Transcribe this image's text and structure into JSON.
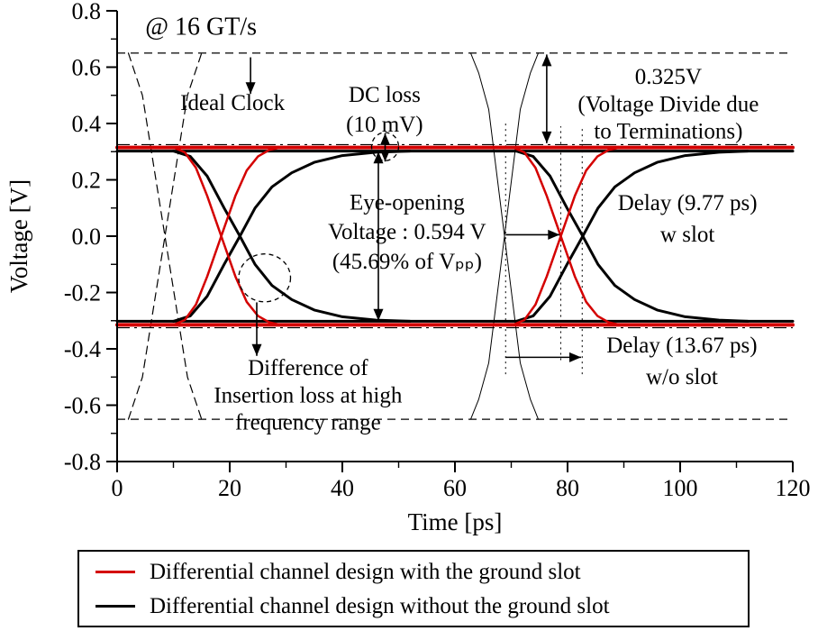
{
  "chart_data": {
    "type": "line",
    "xlabel": "Time [ps]",
    "ylabel": "Voltage [V]",
    "xlim": [
      0,
      120
    ],
    "ylim": [
      -0.8,
      0.8
    ],
    "x_ticks": [
      0,
      20,
      40,
      60,
      80,
      100,
      120
    ],
    "x_tick_labels": [
      "0",
      "20",
      "40",
      "60",
      "80",
      "100",
      "120"
    ],
    "x_minor_step": 10,
    "y_ticks": [
      0.8,
      0.6,
      0.4,
      0.2,
      0.0,
      -0.2,
      -0.4,
      -0.6,
      -0.8
    ],
    "y_tick_labels": [
      "0.8",
      "0.6",
      "0.4",
      "0.2",
      "0.0",
      "-0.2",
      "-0.4",
      "-0.6",
      "-0.8"
    ],
    "y_minor_step": 0.1,
    "colors": {
      "with_slot": "#d40000",
      "without_slot": "#000000"
    },
    "reference_lines": [
      {
        "v": 0.65,
        "style": "dashed",
        "meaning": "ideal clock high level"
      },
      {
        "v": -0.65,
        "style": "dashed",
        "meaning": "ideal clock low level"
      },
      {
        "v": 0.325,
        "style": "dashdot",
        "meaning": "termination divide level +0.325V"
      },
      {
        "v": -0.325,
        "style": "dashdot",
        "meaning": "termination divide level -0.325V"
      }
    ],
    "vlines": [
      {
        "t": 69.0,
        "from": -0.49,
        "to": 0.41
      },
      {
        "t": 78.8,
        "from": -0.44,
        "to": 0.39
      },
      {
        "t": 82.6,
        "from": -0.49,
        "to": 0.39
      }
    ],
    "series": [
      {
        "name": "ideal-clock-rise-1",
        "color": "#000000",
        "width": 1.2,
        "style": "dashed",
        "points": [
          [
            2,
            -0.65
          ],
          [
            4.5,
            -0.5
          ],
          [
            8.5,
            0
          ],
          [
            12.5,
            0.5
          ],
          [
            15,
            0.65
          ]
        ]
      },
      {
        "name": "ideal-clock-fall-1",
        "color": "#000000",
        "width": 1.2,
        "style": "dashed",
        "points": [
          [
            2,
            0.65
          ],
          [
            4.5,
            0.5
          ],
          [
            8.5,
            0
          ],
          [
            12.5,
            -0.5
          ],
          [
            15,
            -0.65
          ]
        ]
      },
      {
        "name": "ideal-clock-fall-2",
        "color": "#000000",
        "width": 1,
        "style": "solid",
        "points": [
          [
            62.8,
            0.65
          ],
          [
            64.2,
            0.58
          ],
          [
            66,
            0.45
          ],
          [
            68.8,
            0
          ],
          [
            71.6,
            -0.45
          ],
          [
            73.4,
            -0.58
          ],
          [
            74.8,
            -0.65
          ]
        ]
      },
      {
        "name": "ideal-clock-rise-2",
        "color": "#000000",
        "width": 1,
        "style": "solid",
        "points": [
          [
            62.8,
            -0.65
          ],
          [
            64.2,
            -0.58
          ],
          [
            66,
            -0.45
          ],
          [
            68.8,
            0
          ],
          [
            71.6,
            0.45
          ],
          [
            73.4,
            0.58
          ],
          [
            74.8,
            0.65
          ]
        ]
      },
      {
        "name": "black-rail-top",
        "color": "#000000",
        "width": 3,
        "style": "solid",
        "points": [
          [
            0,
            0.302
          ],
          [
            120,
            0.302
          ]
        ]
      },
      {
        "name": "black-rail-bottom",
        "color": "#000000",
        "width": 3,
        "style": "solid",
        "points": [
          [
            0,
            -0.302
          ],
          [
            120,
            -0.302
          ]
        ]
      },
      {
        "name": "red-rail-top",
        "color": "#d40000",
        "width": 4,
        "style": "solid",
        "points": [
          [
            0,
            0.315
          ],
          [
            120,
            0.315
          ]
        ]
      },
      {
        "name": "red-rail-bottom",
        "color": "#d40000",
        "width": 4,
        "style": "solid",
        "points": [
          [
            0,
            -0.315
          ],
          [
            120,
            -0.315
          ]
        ]
      },
      {
        "name": "black-rise-1",
        "color": "#000000",
        "width": 3,
        "style": "solid",
        "points": [
          [
            10,
            -0.302
          ],
          [
            13,
            -0.283
          ],
          [
            16,
            -0.213
          ],
          [
            19,
            -0.1
          ],
          [
            21.8,
            0
          ],
          [
            24.5,
            0.1
          ],
          [
            27.5,
            0.175
          ],
          [
            31,
            0.225
          ],
          [
            35,
            0.262
          ],
          [
            40,
            0.286
          ],
          [
            46,
            0.298
          ],
          [
            52,
            0.302
          ]
        ]
      },
      {
        "name": "black-fall-1",
        "color": "#000000",
        "width": 3,
        "style": "solid",
        "points": [
          [
            10,
            0.302
          ],
          [
            13,
            0.283
          ],
          [
            16,
            0.213
          ],
          [
            19,
            0.1
          ],
          [
            21.8,
            0
          ],
          [
            24.5,
            -0.1
          ],
          [
            27.5,
            -0.175
          ],
          [
            31,
            -0.225
          ],
          [
            35,
            -0.262
          ],
          [
            40,
            -0.286
          ],
          [
            46,
            -0.298
          ],
          [
            52,
            -0.302
          ]
        ]
      },
      {
        "name": "red-rise-1",
        "color": "#d40000",
        "width": 2.5,
        "style": "solid",
        "points": [
          [
            10,
            -0.315
          ],
          [
            12,
            -0.298
          ],
          [
            14,
            -0.243
          ],
          [
            16,
            -0.143
          ],
          [
            18.5,
            0
          ],
          [
            21,
            0.143
          ],
          [
            23,
            0.233
          ],
          [
            25,
            0.283
          ],
          [
            27,
            0.306
          ],
          [
            29,
            0.315
          ]
        ]
      },
      {
        "name": "red-fall-1",
        "color": "#d40000",
        "width": 2.5,
        "style": "solid",
        "points": [
          [
            10,
            0.315
          ],
          [
            12,
            0.298
          ],
          [
            14,
            0.243
          ],
          [
            16,
            0.143
          ],
          [
            18.5,
            0
          ],
          [
            21,
            -0.143
          ],
          [
            23,
            -0.233
          ],
          [
            25,
            -0.283
          ],
          [
            27,
            -0.306
          ],
          [
            29,
            -0.315
          ]
        ]
      },
      {
        "name": "black-rise-2",
        "color": "#000000",
        "width": 3,
        "style": "solid",
        "points": [
          [
            70.9,
            -0.302
          ],
          [
            73.9,
            -0.283
          ],
          [
            76.9,
            -0.213
          ],
          [
            79.9,
            -0.1
          ],
          [
            82.7,
            0
          ],
          [
            85.4,
            0.1
          ],
          [
            88.4,
            0.175
          ],
          [
            91.9,
            0.225
          ],
          [
            95.9,
            0.262
          ],
          [
            100.9,
            0.286
          ],
          [
            106.9,
            0.298
          ],
          [
            112,
            0.302
          ]
        ]
      },
      {
        "name": "black-fall-2",
        "color": "#000000",
        "width": 3,
        "style": "solid",
        "points": [
          [
            70.9,
            0.302
          ],
          [
            73.9,
            0.283
          ],
          [
            76.9,
            0.213
          ],
          [
            79.9,
            0.1
          ],
          [
            82.7,
            0
          ],
          [
            85.4,
            -0.1
          ],
          [
            88.4,
            -0.175
          ],
          [
            91.9,
            -0.225
          ],
          [
            95.9,
            -0.262
          ],
          [
            100.9,
            -0.286
          ],
          [
            106.9,
            -0.298
          ],
          [
            112,
            -0.302
          ]
        ]
      },
      {
        "name": "red-rise-2",
        "color": "#d40000",
        "width": 2.5,
        "style": "solid",
        "points": [
          [
            70.3,
            -0.315
          ],
          [
            72.3,
            -0.298
          ],
          [
            74.3,
            -0.243
          ],
          [
            76.3,
            -0.143
          ],
          [
            78.8,
            0
          ],
          [
            81.3,
            0.143
          ],
          [
            83.3,
            0.233
          ],
          [
            85.3,
            0.283
          ],
          [
            87.3,
            0.306
          ],
          [
            89.3,
            0.315
          ]
        ]
      },
      {
        "name": "red-fall-2",
        "color": "#d40000",
        "width": 2.5,
        "style": "solid",
        "points": [
          [
            70.3,
            0.315
          ],
          [
            72.3,
            0.298
          ],
          [
            74.3,
            0.243
          ],
          [
            76.3,
            0.143
          ],
          [
            78.8,
            0
          ],
          [
            81.3,
            -0.143
          ],
          [
            83.3,
            -0.233
          ],
          [
            85.3,
            -0.283
          ],
          [
            87.3,
            -0.306
          ],
          [
            89.3,
            -0.315
          ]
        ]
      }
    ],
    "annotations": [
      {
        "id": "data-rate",
        "lines": [
          "@ 16 GT/s"
        ],
        "t": 5.0,
        "v": 0.715,
        "anchor": "start",
        "size": 28
      },
      {
        "id": "ideal-clock",
        "lines": [
          "Ideal Clock"
        ],
        "t": 20.5,
        "v": 0.448,
        "step": 0.105,
        "anchor": "middle",
        "size": 25
      },
      {
        "id": "dc-loss",
        "lines": [
          "DC loss",
          "(10 mV)"
        ],
        "t": 47.5,
        "v": 0.477,
        "step": 0.105,
        "anchor": "middle",
        "size": 25
      },
      {
        "id": "termination-divide",
        "lines": [
          "0.325V",
          "(Voltage Divide due",
          "to Terminations)"
        ],
        "t": 97.9,
        "v": 0.541,
        "step": 0.097,
        "anchor": "middle",
        "size": 25
      },
      {
        "id": "eye-opening",
        "lines": [
          "Eye-opening",
          "Voltage : 0.594 V",
          "(45.69% of Vₚₚ)"
        ],
        "t": 51.5,
        "v": 0.095,
        "step": 0.105,
        "anchor": "middle",
        "size": 25
      },
      {
        "id": "delay-with-slot",
        "lines": [
          "Delay (9.77 ps)",
          "w slot"
        ],
        "t": 101.3,
        "v": 0.093,
        "step": 0.112,
        "anchor": "middle",
        "size": 25
      },
      {
        "id": "delay-without-slot",
        "lines": [
          "Delay (13.67 ps)",
          "w/o slot"
        ],
        "t": 100.3,
        "v": -0.413,
        "step": 0.112,
        "anchor": "middle",
        "size": 25
      },
      {
        "id": "insertion-loss",
        "lines": [
          "Difference of",
          "Insertion loss at high",
          "frequency range"
        ],
        "t": 33.9,
        "v": -0.493,
        "step": 0.097,
        "anchor": "middle",
        "size": 25
      }
    ],
    "arrows": [
      {
        "name": "ideal-clock-arrow",
        "x1": 23.7,
        "y1": 0.635,
        "x2": 23.7,
        "y2": 0.505,
        "heads": "end"
      },
      {
        "name": "termination-arrow",
        "x1": 76.3,
        "y1": 0.645,
        "x2": 76.3,
        "y2": 0.33,
        "heads": "both"
      },
      {
        "name": "dc-loss-arrow",
        "x1": 47.6,
        "y1": 0.365,
        "x2": 47.6,
        "y2": 0.265,
        "heads": "both"
      },
      {
        "name": "eye-opening-arrow",
        "x1": 46.4,
        "y1": 0.3,
        "x2": 46.4,
        "y2": -0.3,
        "heads": "both"
      },
      {
        "name": "delay-w-slot-arrow",
        "x1": 69.0,
        "y1": 0.005,
        "x2": 78.6,
        "y2": 0.005,
        "heads": "end"
      },
      {
        "name": "delay-wo-slot-arrow",
        "x1": 69.0,
        "y1": -0.43,
        "x2": 82.4,
        "y2": -0.43,
        "heads": "end"
      },
      {
        "name": "insertion-loss-arrow",
        "x1": 24.8,
        "y1": -0.235,
        "x2": 24.8,
        "y2": -0.425,
        "heads": "end"
      }
    ],
    "ellipses": [
      {
        "name": "dc-loss-ellipse",
        "cx": 47.6,
        "cy": 0.318,
        "rx": 2.4,
        "ry": 0.05
      },
      {
        "name": "insertion-loss-ellipse",
        "cx": 26.2,
        "cy": -0.148,
        "rx": 4.6,
        "ry": 0.085
      }
    ],
    "legend": {
      "items": [
        {
          "label": "Differential channel design with the ground slot",
          "color": "#d40000"
        },
        {
          "label": "Differential channel design without the ground slot",
          "color": "#000000"
        }
      ]
    }
  }
}
